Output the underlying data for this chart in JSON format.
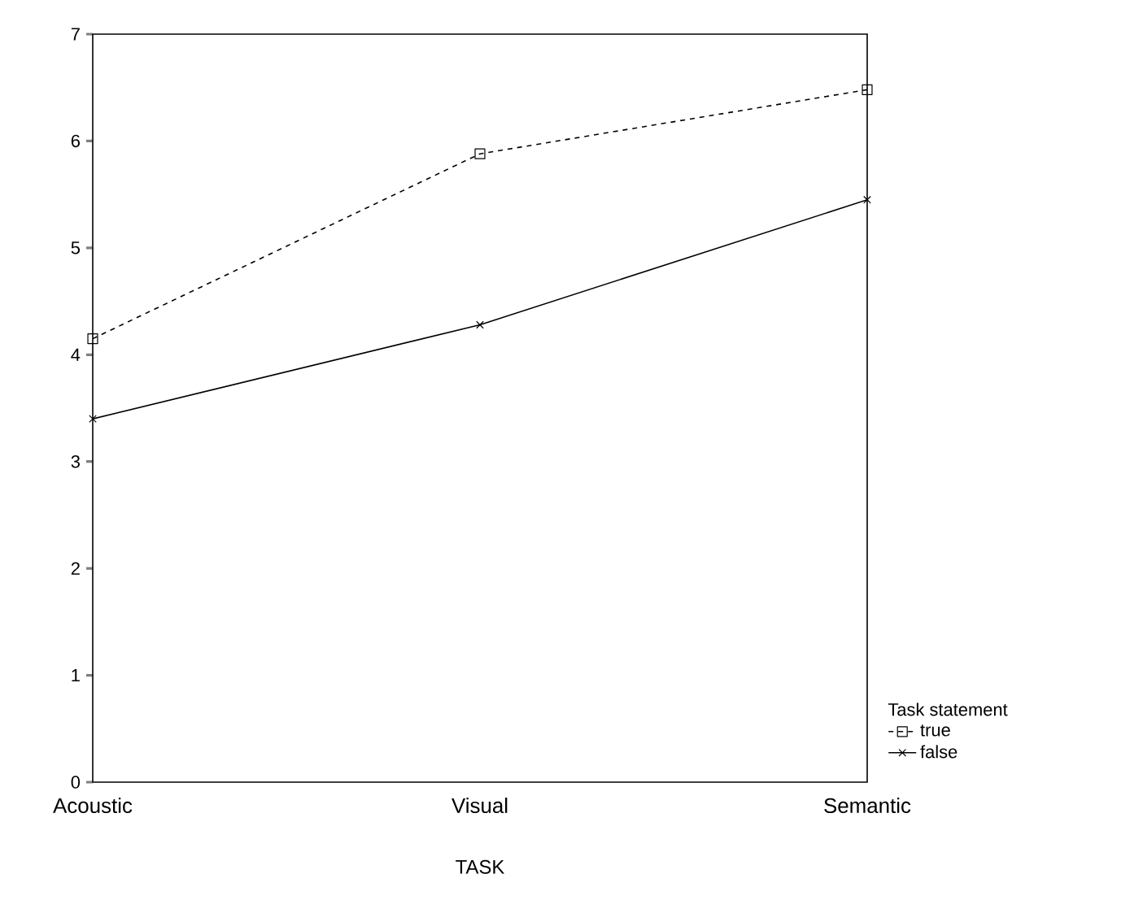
{
  "chart_data": {
    "type": "line",
    "xlabel": "TASK",
    "legend_title": "Task statement",
    "legend": "bottom right",
    "categories": [
      "Acoustic",
      "Visual",
      "Semantic"
    ],
    "series": [
      {
        "name": "true",
        "color": "#000000",
        "values": [
          4.15,
          5.88,
          6.48
        ],
        "marker": "square",
        "line_style": "dashed"
      },
      {
        "name": "false",
        "color": "#000000",
        "values": [
          3.4,
          4.28,
          5.45
        ],
        "marker": "cross",
        "line_style": "solid"
      }
    ],
    "ylim": [
      0,
      7
    ],
    "yticks": [
      0,
      1,
      2,
      3,
      4,
      5,
      6,
      7
    ],
    "grid": false
  }
}
